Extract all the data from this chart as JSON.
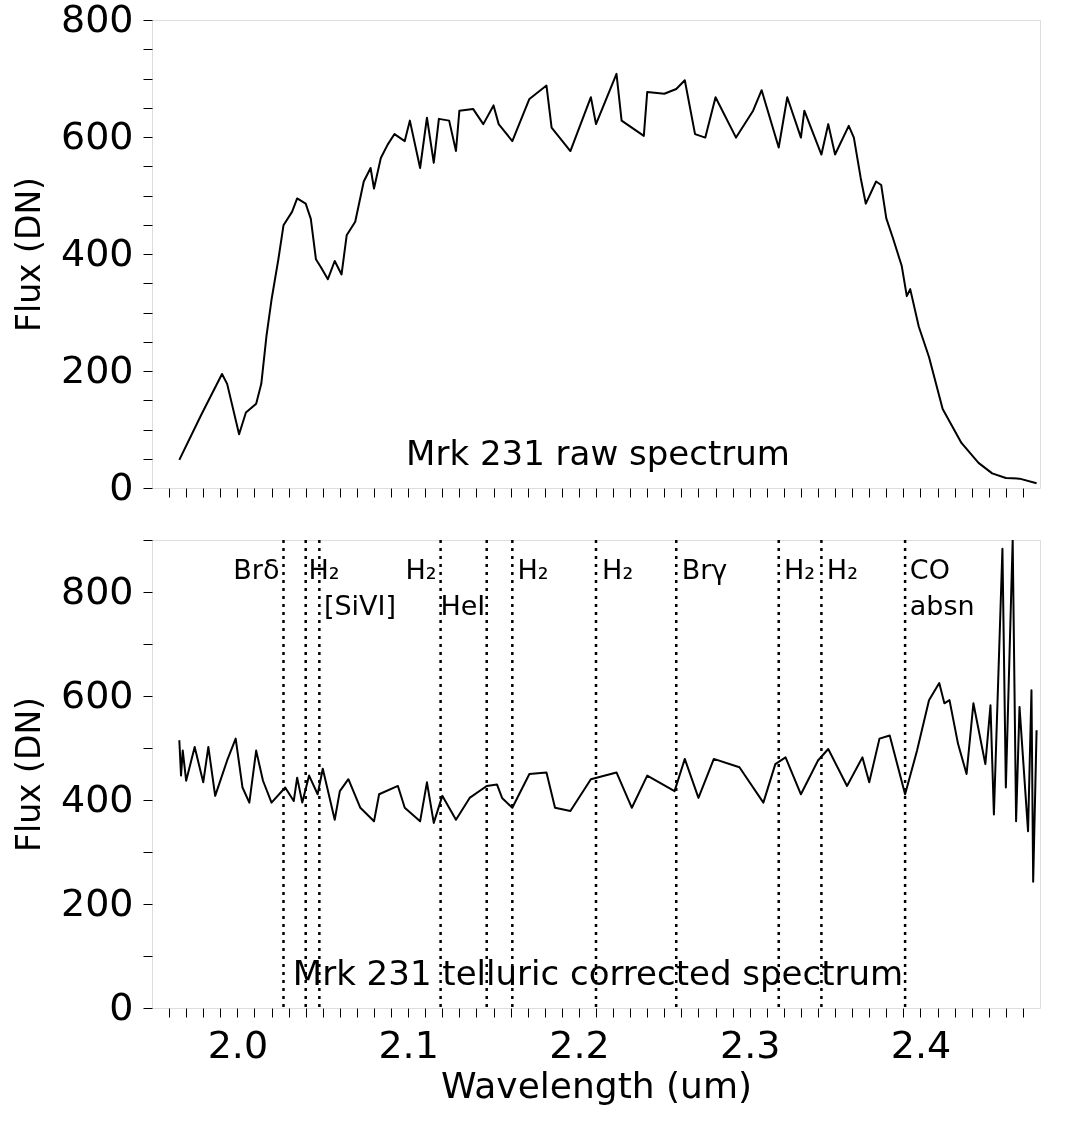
{
  "chart_data": [
    {
      "type": "line",
      "ylabel": "Flux (DN)",
      "xlim": [
        1.95,
        2.47
      ],
      "ylim": [
        0,
        800
      ],
      "xticks": [
        {
          "value": 1.96,
          "label": null
        },
        {
          "value": 1.97,
          "label": null
        },
        {
          "value": 1.98,
          "label": null
        },
        {
          "value": 1.99,
          "label": null
        },
        {
          "value": 2.0,
          "label": null
        },
        {
          "value": 2.01,
          "label": null
        },
        {
          "value": 2.02,
          "label": null
        },
        {
          "value": 2.03,
          "label": null
        },
        {
          "value": 2.04,
          "label": null
        },
        {
          "value": 2.05,
          "label": null
        },
        {
          "value": 2.06,
          "label": null
        },
        {
          "value": 2.07,
          "label": null
        },
        {
          "value": 2.08,
          "label": null
        },
        {
          "value": 2.09,
          "label": null
        },
        {
          "value": 2.1,
          "label": null
        },
        {
          "value": 2.11,
          "label": null
        },
        {
          "value": 2.12,
          "label": null
        },
        {
          "value": 2.13,
          "label": null
        },
        {
          "value": 2.14,
          "label": null
        },
        {
          "value": 2.15,
          "label": null
        },
        {
          "value": 2.16,
          "label": null
        },
        {
          "value": 2.17,
          "label": null
        },
        {
          "value": 2.18,
          "label": null
        },
        {
          "value": 2.19,
          "label": null
        },
        {
          "value": 2.2,
          "label": null
        },
        {
          "value": 2.21,
          "label": null
        },
        {
          "value": 2.22,
          "label": null
        },
        {
          "value": 2.23,
          "label": null
        },
        {
          "value": 2.24,
          "label": null
        },
        {
          "value": 2.25,
          "label": null
        },
        {
          "value": 2.26,
          "label": null
        },
        {
          "value": 2.27,
          "label": null
        },
        {
          "value": 2.28,
          "label": null
        },
        {
          "value": 2.29,
          "label": null
        },
        {
          "value": 2.3,
          "label": null
        },
        {
          "value": 2.31,
          "label": null
        },
        {
          "value": 2.32,
          "label": null
        },
        {
          "value": 2.33,
          "label": null
        },
        {
          "value": 2.34,
          "label": null
        },
        {
          "value": 2.35,
          "label": null
        },
        {
          "value": 2.36,
          "label": null
        },
        {
          "value": 2.37,
          "label": null
        },
        {
          "value": 2.38,
          "label": null
        },
        {
          "value": 2.39,
          "label": null
        },
        {
          "value": 2.4,
          "label": null
        },
        {
          "value": 2.41,
          "label": null
        },
        {
          "value": 2.42,
          "label": null
        },
        {
          "value": 2.43,
          "label": null
        },
        {
          "value": 2.44,
          "label": null
        },
        {
          "value": 2.45,
          "label": null
        },
        {
          "value": 2.46,
          "label": null
        }
      ],
      "yticks": [
        0,
        {
          "value": 50,
          "label": null
        },
        {
          "value": 100,
          "label": null
        },
        {
          "value": 150,
          "label": null
        },
        200,
        {
          "value": 250,
          "label": null
        },
        {
          "value": 300,
          "label": null
        },
        {
          "value": 350,
          "label": null
        },
        400,
        {
          "value": 450,
          "label": null
        },
        {
          "value": 500,
          "label": null
        },
        {
          "value": 550,
          "label": null
        },
        600,
        {
          "value": 650,
          "label": null
        },
        {
          "value": 700,
          "label": null
        },
        {
          "value": 750,
          "label": null
        },
        800
      ],
      "tick_labels": "y",
      "line_style": "solid",
      "series": [
        {
          "color": "#000000",
          "x": [
            1.966,
            1.979,
            1.991,
            1.994,
            2.001,
            2.005,
            2.011,
            2.014,
            2.017,
            2.02,
            2.024,
            2.027,
            2.032,
            2.035,
            2.04,
            2.043,
            2.046,
            2.049,
            2.053,
            2.057,
            2.061,
            2.064,
            2.069,
            2.074,
            2.078,
            2.08,
            2.084,
            2.088,
            2.092,
            2.098,
            2.101,
            2.107,
            2.111,
            2.115,
            2.118,
            2.124,
            2.128,
            2.13,
            2.138,
            2.144,
            2.15,
            2.153,
            2.161,
            2.171,
            2.181,
            2.184,
            2.195,
            2.207,
            2.21,
            2.222,
            2.225,
            2.238,
            2.24,
            2.25,
            2.257,
            2.262,
            2.268,
            2.274,
            2.28,
            2.292,
            2.302,
            2.307,
            2.317,
            2.322,
            2.33,
            2.332,
            2.342,
            2.346,
            2.35,
            2.358,
            2.361,
            2.365,
            2.368,
            2.374,
            2.377,
            2.38,
            2.384,
            2.389,
            2.392,
            2.394,
            2.399,
            2.405,
            2.413,
            2.424,
            2.434,
            2.442,
            2.45,
            2.458,
            2.468
          ],
          "values": [
            48,
            126,
            195,
            178,
            92,
            129,
            144,
            178,
            259,
            322,
            391,
            449,
            472,
            495,
            486,
            460,
            391,
            377,
            357,
            388,
            365,
            432,
            455,
            524,
            547,
            512,
            564,
            587,
            605,
            593,
            628,
            547,
            633,
            556,
            631,
            628,
            576,
            645,
            648,
            622,
            654,
            622,
            593,
            665,
            688,
            616,
            576,
            668,
            622,
            708,
            628,
            602,
            677,
            674,
            682,
            697,
            605,
            599,
            668,
            599,
            645,
            680,
            582,
            668,
            599,
            645,
            570,
            622,
            570,
            619,
            599,
            530,
            486,
            524,
            518,
            461,
            426,
            380,
            328,
            340,
            276,
            224,
            135,
            77,
            43,
            25,
            17,
            16,
            8
          ]
        }
      ],
      "annotations": [
        "Mrk 231 raw spectrum"
      ]
    },
    {
      "type": "line",
      "xlabel": "Wavelength (um)",
      "ylabel": "Flux (DN)",
      "xlim": [
        1.95,
        2.47
      ],
      "ylim": [
        0,
        900
      ],
      "xticks": [
        {
          "value": 1.96,
          "label": null
        },
        {
          "value": 1.97,
          "label": null
        },
        {
          "value": 1.98,
          "label": null
        },
        {
          "value": 1.99,
          "label": null
        },
        {
          "value": 2.0,
          "label": "2.0"
        },
        {
          "value": 2.01,
          "label": null
        },
        {
          "value": 2.02,
          "label": null
        },
        {
          "value": 2.03,
          "label": null
        },
        {
          "value": 2.04,
          "label": null
        },
        {
          "value": 2.05,
          "label": null
        },
        {
          "value": 2.06,
          "label": null
        },
        {
          "value": 2.07,
          "label": null
        },
        {
          "value": 2.08,
          "label": null
        },
        {
          "value": 2.09,
          "label": null
        },
        {
          "value": 2.1,
          "label": "2.1"
        },
        {
          "value": 2.11,
          "label": null
        },
        {
          "value": 2.12,
          "label": null
        },
        {
          "value": 2.13,
          "label": null
        },
        {
          "value": 2.14,
          "label": null
        },
        {
          "value": 2.15,
          "label": null
        },
        {
          "value": 2.16,
          "label": null
        },
        {
          "value": 2.17,
          "label": null
        },
        {
          "value": 2.18,
          "label": null
        },
        {
          "value": 2.19,
          "label": null
        },
        {
          "value": 2.2,
          "label": "2.2"
        },
        {
          "value": 2.21,
          "label": null
        },
        {
          "value": 2.22,
          "label": null
        },
        {
          "value": 2.23,
          "label": null
        },
        {
          "value": 2.24,
          "label": null
        },
        {
          "value": 2.25,
          "label": null
        },
        {
          "value": 2.26,
          "label": null
        },
        {
          "value": 2.27,
          "label": null
        },
        {
          "value": 2.28,
          "label": null
        },
        {
          "value": 2.29,
          "label": null
        },
        {
          "value": 2.3,
          "label": "2.3"
        },
        {
          "value": 2.31,
          "label": null
        },
        {
          "value": 2.32,
          "label": null
        },
        {
          "value": 2.33,
          "label": null
        },
        {
          "value": 2.34,
          "label": null
        },
        {
          "value": 2.35,
          "label": null
        },
        {
          "value": 2.36,
          "label": null
        },
        {
          "value": 2.37,
          "label": null
        },
        {
          "value": 2.38,
          "label": null
        },
        {
          "value": 2.39,
          "label": null
        },
        {
          "value": 2.4,
          "label": "2.4"
        },
        {
          "value": 2.41,
          "label": null
        },
        {
          "value": 2.42,
          "label": null
        },
        {
          "value": 2.43,
          "label": null
        },
        {
          "value": 2.44,
          "label": null
        },
        {
          "value": 2.45,
          "label": null
        },
        {
          "value": 2.46,
          "label": null
        }
      ],
      "yticks": [
        0,
        {
          "value": 100,
          "label": null
        },
        200,
        {
          "value": 300,
          "label": null
        },
        400,
        {
          "value": 500,
          "label": null
        },
        600,
        {
          "value": 700,
          "label": null
        },
        800,
        {
          "value": 900,
          "label": null
        }
      ],
      "line_style": "solid",
      "series": [
        {
          "color": "#000000",
          "x": [
            1.966,
            1.967,
            1.968,
            1.97,
            1.975,
            1.98,
            1.983,
            1.987,
            1.994,
            1.999,
            2.003,
            2.007,
            2.011,
            2.015,
            2.02,
            2.028,
            2.033,
            2.035,
            2.038,
            2.042,
            2.047,
            2.05,
            2.057,
            2.06,
            2.065,
            2.072,
            2.08,
            2.083,
            2.094,
            2.098,
            2.107,
            2.111,
            2.115,
            2.12,
            2.128,
            2.136,
            2.146,
            2.152,
            2.155,
            2.161,
            2.171,
            2.181,
            2.186,
            2.195,
            2.207,
            2.222,
            2.231,
            2.24,
            2.256,
            2.262,
            2.27,
            2.279,
            2.294,
            2.308,
            2.315,
            2.321,
            2.33,
            2.34,
            2.346,
            2.357,
            2.366,
            2.37,
            2.376,
            2.382,
            2.391,
            2.398,
            2.405,
            2.411,
            2.414,
            2.417,
            2.422,
            2.427,
            2.431,
            2.438,
            2.441,
            2.443,
            2.448,
            2.45,
            2.454,
            2.456,
            2.458,
            2.463,
            2.465,
            2.466,
            2.468
          ],
          "values": [
            515,
            447,
            495,
            437,
            502,
            434,
            502,
            408,
            476,
            518,
            424,
            395,
            495,
            437,
            395,
            424,
            398,
            443,
            395,
            447,
            411,
            460,
            362,
            417,
            440,
            385,
            359,
            411,
            427,
            385,
            359,
            434,
            356,
            408,
            362,
            404,
            427,
            430,
            404,
            385,
            450,
            453,
            385,
            379,
            440,
            453,
            385,
            447,
            417,
            479,
            404,
            479,
            463,
            395,
            469,
            482,
            411,
            476,
            498,
            427,
            482,
            434,
            518,
            524,
            411,
            495,
            592,
            625,
            586,
            592,
            508,
            450,
            586,
            469,
            582,
            372,
            883,
            424,
            900,
            359,
            579,
            340,
            611,
            243,
            534
          ]
        }
      ],
      "ref_lines": [
        {
          "axis": "x",
          "value": 2.027,
          "line_style": "dotted"
        },
        {
          "axis": "x",
          "value": 2.04,
          "line_style": "dotted"
        },
        {
          "axis": "x",
          "value": 2.048,
          "line_style": "dotted"
        },
        {
          "axis": "x",
          "value": 2.119,
          "line_style": "dotted"
        },
        {
          "axis": "x",
          "value": 2.146,
          "line_style": "dotted"
        },
        {
          "axis": "x",
          "value": 2.161,
          "line_style": "dotted"
        },
        {
          "axis": "x",
          "value": 2.21,
          "line_style": "dotted"
        },
        {
          "axis": "x",
          "value": 2.257,
          "line_style": "dotted"
        },
        {
          "axis": "x",
          "value": 2.317,
          "line_style": "dotted"
        },
        {
          "axis": "x",
          "value": 2.342,
          "line_style": "dotted"
        },
        {
          "axis": "x",
          "value": 2.391,
          "line_style": "dotted"
        }
      ],
      "annotations": [
        {
          "text": "Brδ",
          "x": 2.027,
          "y": 840
        },
        {
          "text": "H₂",
          "x": 2.0405,
          "y": 840
        },
        {
          "text": "[SiVI]",
          "x": 2.0495,
          "y": 772
        },
        {
          "text": "H₂",
          "x": 2.119,
          "y": 840
        },
        {
          "text": "HeI",
          "x": 2.1177,
          "y": 772
        },
        {
          "text": "H₂",
          "x": 2.1628,
          "y": 840
        },
        {
          "text": "H₂",
          "x": 2.2124,
          "y": 840
        },
        {
          "text": "Brγ",
          "x": 2.259,
          "y": 840
        },
        {
          "text": "H₂",
          "x": 2.3189,
          "y": 840
        },
        {
          "text": "H₂",
          "x": 2.344,
          "y": 840
        },
        {
          "text": "CO",
          "x": 2.3926,
          "y": 840
        },
        {
          "text": "absn",
          "x": 2.3926,
          "y": 772
        },
        "Mrk 231 telluric corrected spectrum"
      ]
    }
  ]
}
